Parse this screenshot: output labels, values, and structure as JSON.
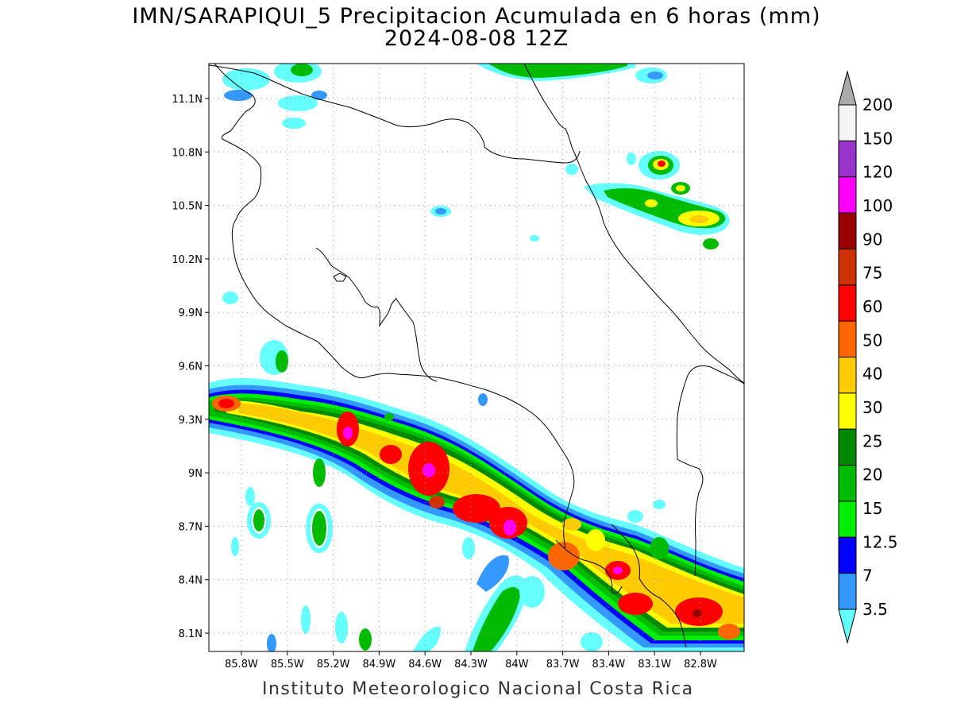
{
  "title": "IMN/SARAPIQUI_5 Precipitacion Acumulada en 6 horas (mm)",
  "subtitle": "2024-08-08 12Z",
  "footer": "Instituto Meteorologico Nacional Costa Rica",
  "lat_labels": [
    "11.1N",
    "10.8N",
    "10.5N",
    "10.2N",
    "9.9N",
    "9.6N",
    "9.3N",
    "9N",
    "8.7N",
    "8.4N",
    "8.1N"
  ],
  "lon_labels": [
    "85.8W",
    "85.5W",
    "85.2W",
    "84.9W",
    "84.6W",
    "84.3W",
    "84W",
    "83.7W",
    "83.4W",
    "83.1W",
    "82.8W"
  ],
  "colorbar": {
    "levels": [
      "3.5",
      "7",
      "12.5",
      "15",
      "20",
      "25",
      "30",
      "40",
      "50",
      "60",
      "75",
      "90",
      "100",
      "120",
      "150",
      "200"
    ],
    "colors": [
      "#66ffff",
      "#3399ff",
      "#0000ff",
      "#00ee00",
      "#00bb00",
      "#008800",
      "#ffff00",
      "#ffcc00",
      "#ff6600",
      "#ff0000",
      "#cc3300",
      "#990000",
      "#ff00ff",
      "#9933cc",
      "#f5f5f5",
      "#aaaaaa"
    ]
  },
  "colors": {
    "coast": "#000000",
    "grid": "#999999"
  }
}
